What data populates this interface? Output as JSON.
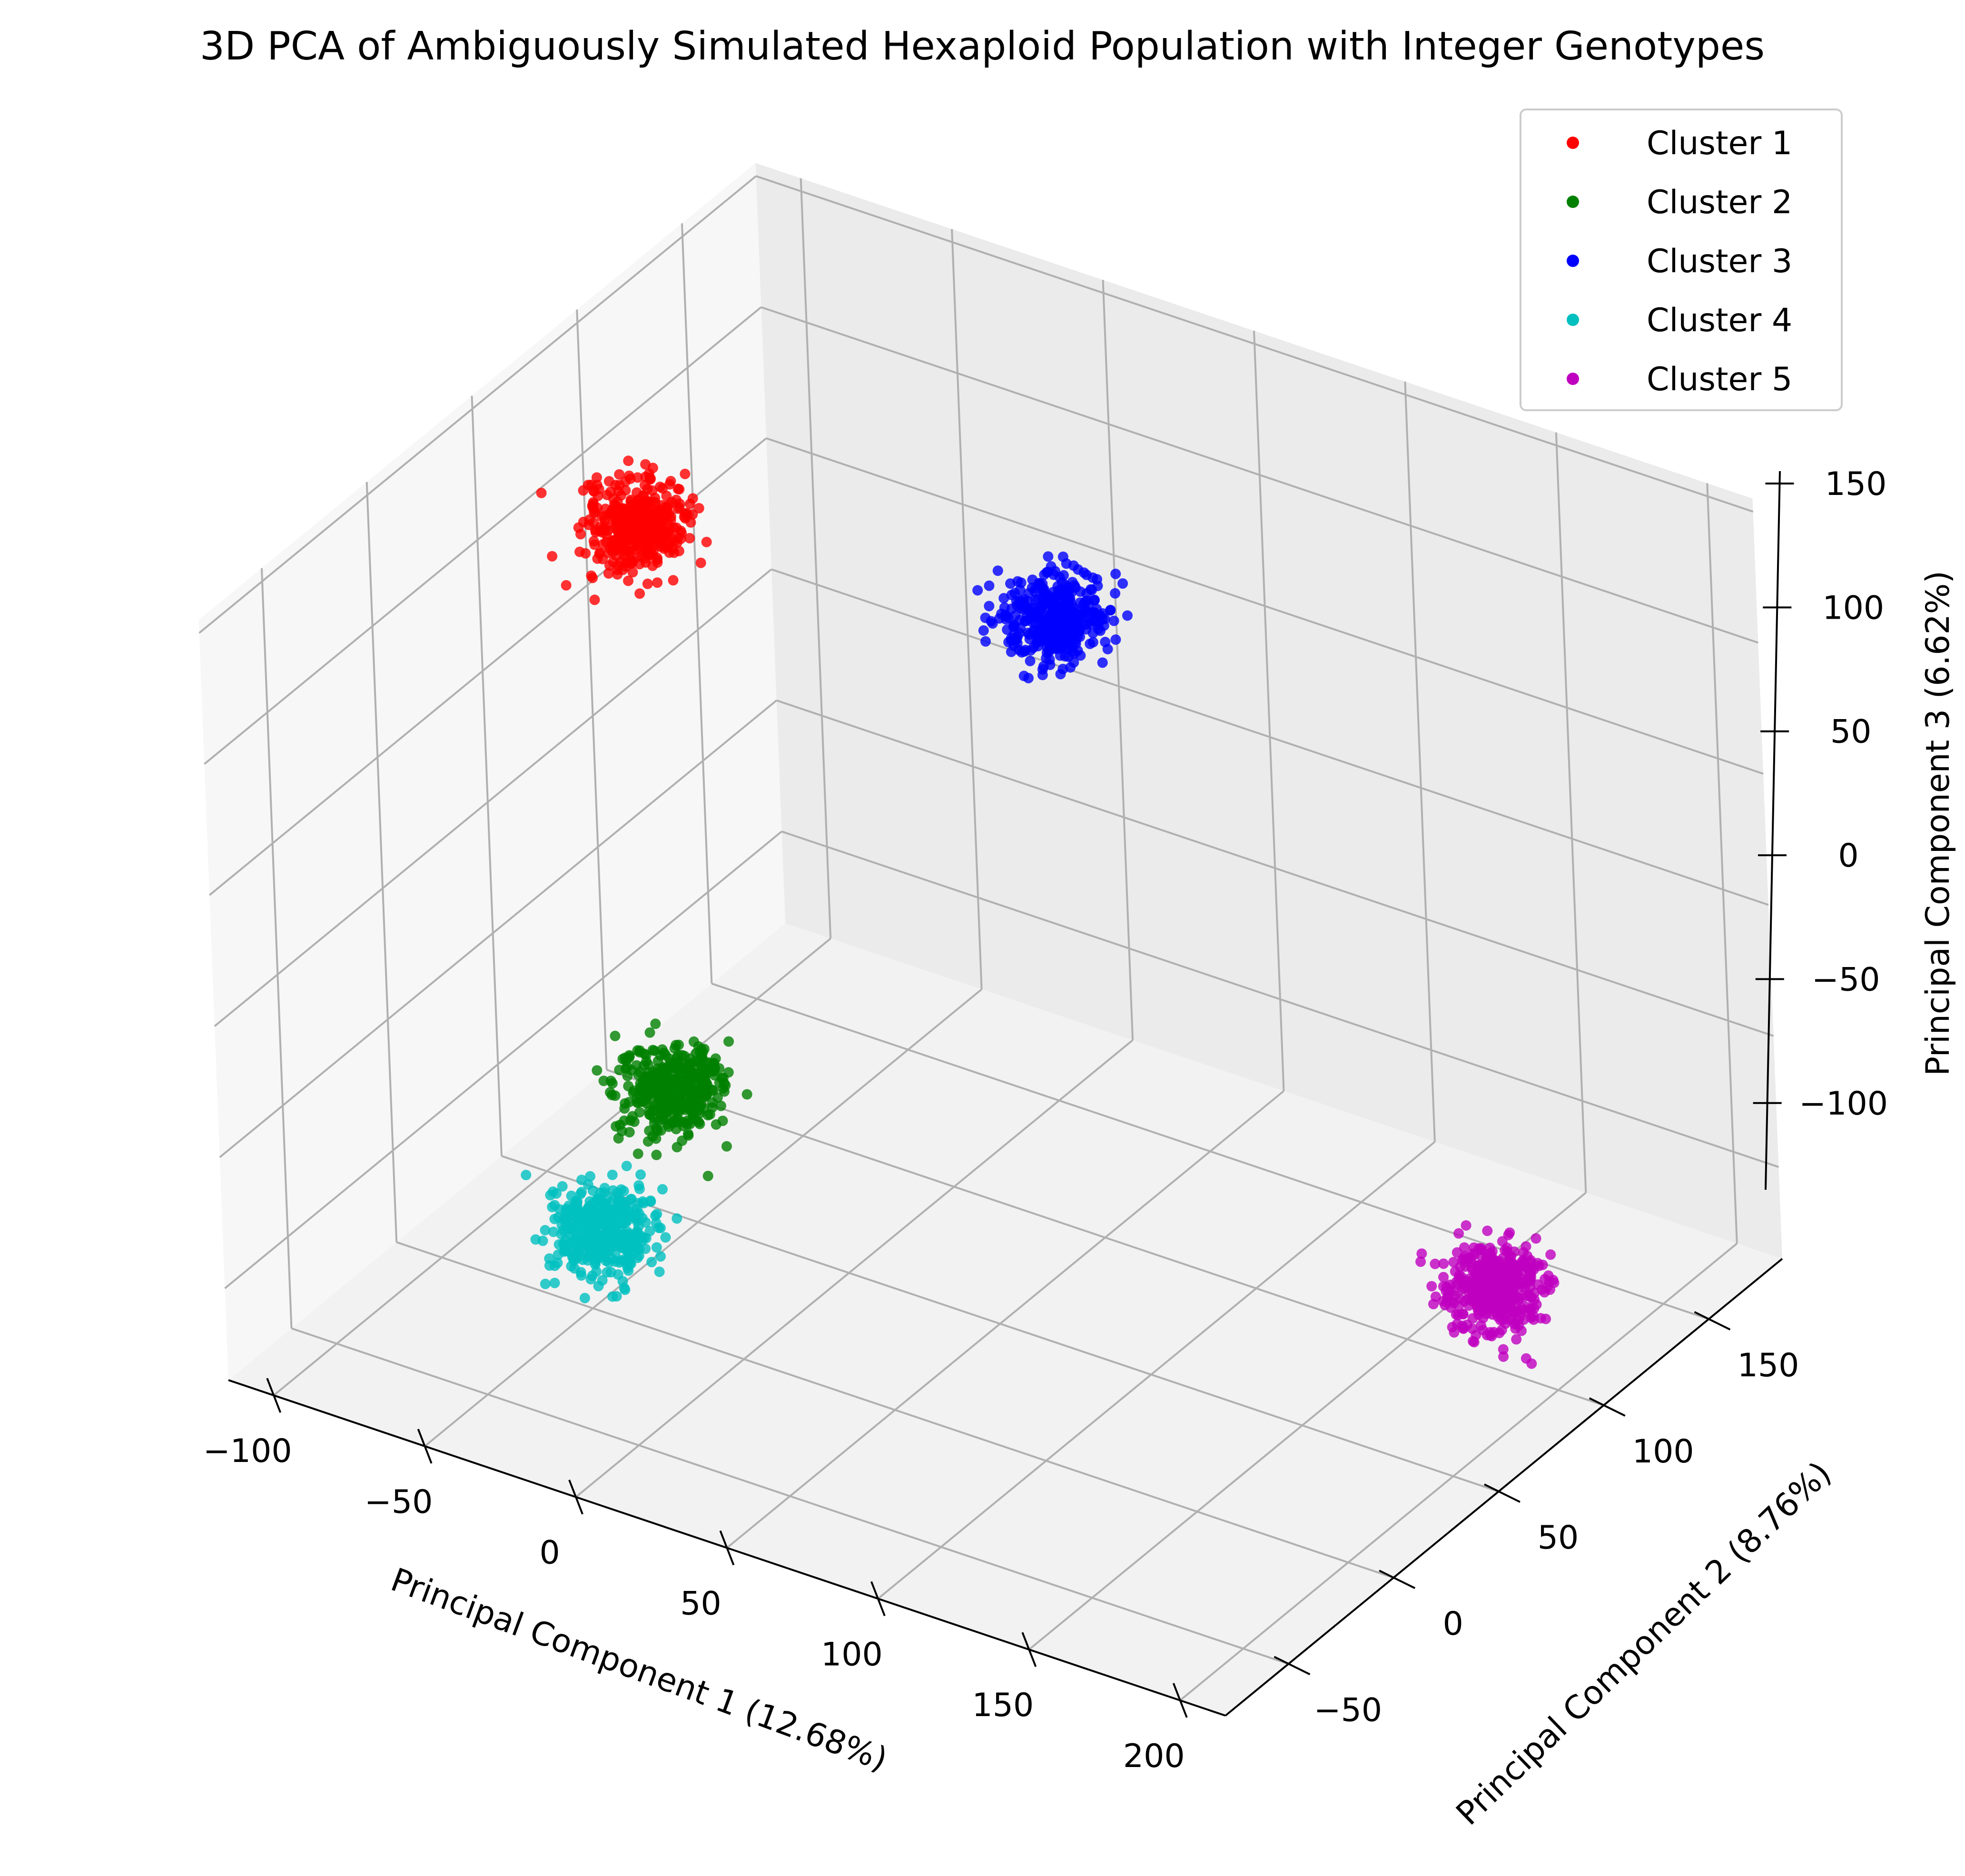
{
  "chart_data": {
    "type": "scatter",
    "projection": "3d",
    "title": "3D PCA of Ambiguously Simulated Hexaploid Population with Integer Genotypes",
    "xlabel": "Principal Component 1 (12.68%)",
    "ylabel": "Principal Component 2 (8.76%)",
    "zlabel": "Principal Component 3 (6.62%)",
    "xlim": [
      -115,
      215
    ],
    "ylim": [
      -80,
      185
    ],
    "zlim": [
      -135,
      155
    ],
    "xticks": [
      -100,
      -50,
      0,
      50,
      100,
      150,
      200
    ],
    "xtick_labels": [
      "−100",
      "−50",
      "0",
      "50",
      "100",
      "150",
      "200"
    ],
    "yticks": [
      -50,
      0,
      50,
      100,
      150
    ],
    "ytick_labels": [
      "−50",
      "0",
      "50",
      "100",
      "150"
    ],
    "zticks": [
      -100,
      -50,
      0,
      50,
      100,
      150
    ],
    "ztick_labels": [
      "−100",
      "−50",
      "0",
      "50",
      "100",
      "150"
    ],
    "grid": true,
    "legend_position": "top-right",
    "series": [
      {
        "name": "Cluster 1",
        "color": "#ff0000",
        "center": [
          -105,
          110,
          70
        ],
        "spread": 7,
        "n": 400
      },
      {
        "name": "Cluster 2",
        "color": "#008000",
        "center": [
          -20,
          0,
          -40
        ],
        "spread": 7,
        "n": 400
      },
      {
        "name": "Cluster 3",
        "color": "#0000ff",
        "center": [
          5,
          150,
          50
        ],
        "spread": 7,
        "n": 400
      },
      {
        "name": "Cluster 4",
        "color": "#00bfbf",
        "center": [
          -35,
          -15,
          -90
        ],
        "spread": 7,
        "n": 400
      },
      {
        "name": "Cluster 5",
        "color": "#bf00bf",
        "center": [
          195,
          80,
          -85
        ],
        "spread": 7,
        "n": 400
      }
    ]
  }
}
